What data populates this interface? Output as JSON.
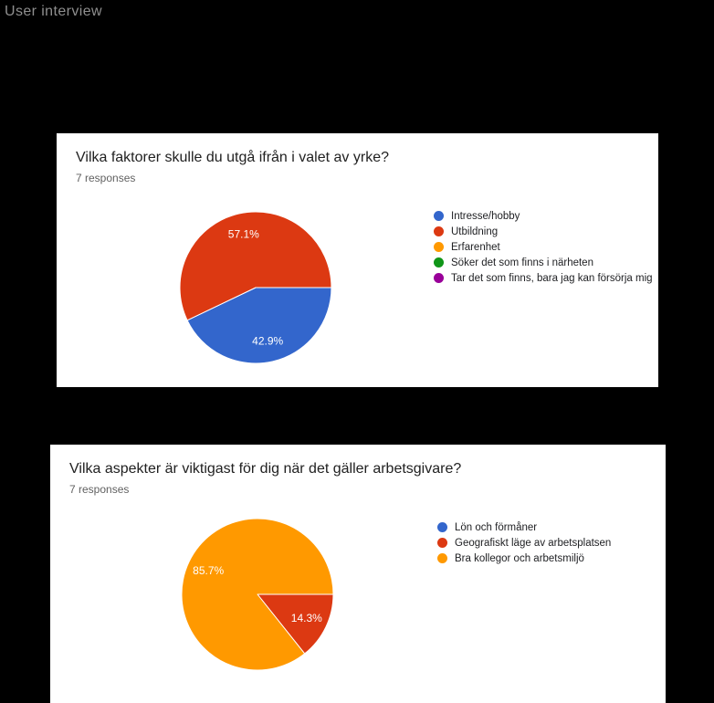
{
  "page": {
    "title": "User interview",
    "background_color": "#000000",
    "title_color": "#8f8f8f",
    "card_background": "#ffffff"
  },
  "cards": [
    {
      "question": "Vilka faktorer skulle du utgå ifrån i valet av yrke?",
      "responses_label": "7 responses",
      "chart_data": {
        "type": "pie",
        "title": "Vilka faktorer skulle du utgå ifrån i valet av yrke?",
        "subtitle": "7 responses",
        "total_responses": 7,
        "legend_position": "right",
        "start_angle_deg": 90,
        "direction": "clockwise",
        "categories": [
          "Intresse/hobby",
          "Utbildning",
          "Erfarenhet",
          "Söker det som finns i närheten",
          "Tar det som finns, bara jag kan försörja mig"
        ],
        "values_pct": [
          42.9,
          57.1,
          0,
          0,
          0
        ],
        "slice_labels": [
          "42.9%",
          "57.1%",
          "",
          "",
          ""
        ],
        "colors": [
          "#3366cc",
          "#dc3912",
          "#ff9900",
          "#109618",
          "#990099"
        ]
      }
    },
    {
      "question": "Vilka aspekter är viktigast för dig när det gäller arbetsgivare?",
      "responses_label": "7 responses",
      "chart_data": {
        "type": "pie",
        "title": "Vilka aspekter är viktigast för dig när det gäller arbetsgivare?",
        "subtitle": "7 responses",
        "total_responses": 7,
        "legend_position": "right",
        "start_angle_deg": 90,
        "direction": "clockwise",
        "categories": [
          "Lön och förmåner",
          "Geografiskt läge av arbetsplatsen",
          "Bra kollegor och arbetsmiljö"
        ],
        "values_pct": [
          0,
          14.3,
          85.7
        ],
        "slice_labels": [
          "",
          "14.3%",
          "85.7%"
        ],
        "colors": [
          "#3366cc",
          "#dc3912",
          "#ff9900"
        ]
      }
    }
  ]
}
